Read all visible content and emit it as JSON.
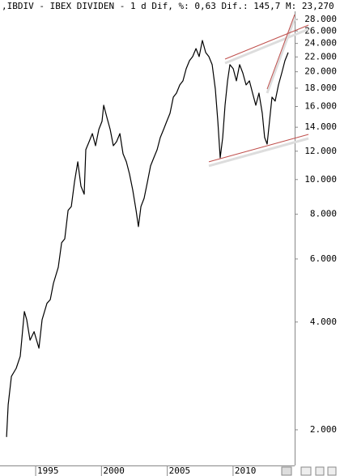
{
  "chart_data": {
    "type": "line",
    "title": ",IBDIV - IBEX DIVIDEN -  1 d Dif, %: 0,63 Dif.: 145,7 M: 23,270",
    "log_scale": true,
    "color": "#000000",
    "x": [
      1992.79,
      1992.91,
      1993.16,
      1993.52,
      1993.83,
      1994.14,
      1994.32,
      1994.57,
      1994.88,
      1995.25,
      1995.49,
      1995.86,
      1996.11,
      1996.35,
      1996.72,
      1996.97,
      1997.21,
      1997.46,
      1997.71,
      1997.95,
      1998.2,
      1998.44,
      1998.69,
      1998.81,
      1999.06,
      1999.31,
      1999.55,
      1999.8,
      2000.04,
      2000.17,
      2000.41,
      2000.66,
      2000.9,
      2001.15,
      2001.4,
      2001.64,
      2001.89,
      2002.13,
      2002.38,
      2002.63,
      2002.81,
      2003.0,
      2003.24,
      2003.49,
      2003.73,
      2003.98,
      2004.23,
      2004.47,
      2004.72,
      2004.96,
      2005.21,
      2005.46,
      2005.7,
      2005.95,
      2006.19,
      2006.44,
      2006.69,
      2006.93,
      2007.18,
      2007.42,
      2007.67,
      2007.92,
      2008.16,
      2008.41,
      2008.65,
      2008.84,
      2009.02,
      2009.21,
      2009.39,
      2009.58,
      2009.76,
      2010.01,
      2010.25,
      2010.5,
      2010.74,
      2010.99,
      2011.24,
      2011.48,
      2011.73,
      2011.97,
      2012.22,
      2012.4,
      2012.59,
      2012.77,
      2012.96,
      2013.2,
      2013.45,
      2013.7,
      2013.94,
      2014.19
    ],
    "values": [
      1910,
      2350,
      2820,
      2970,
      3210,
      4280,
      4060,
      3560,
      3760,
      3380,
      4060,
      4510,
      4620,
      5130,
      5690,
      6660,
      6830,
      8200,
      8410,
      9840,
      11210,
      9580,
      9100,
      12120,
      12760,
      13440,
      12430,
      13800,
      14540,
      16130,
      14920,
      13800,
      12430,
      12760,
      13440,
      11800,
      11210,
      10360,
      9340,
      8200,
      7390,
      8410,
      8860,
      9840,
      10920,
      11500,
      12120,
      13100,
      13800,
      14540,
      15310,
      16990,
      17440,
      18380,
      18860,
      20390,
      21480,
      22050,
      23220,
      22050,
      24460,
      22630,
      22050,
      20930,
      17900,
      14540,
      11500,
      13100,
      16130,
      18860,
      20930,
      20390,
      18860,
      20930,
      19860,
      18380,
      18860,
      17440,
      16130,
      17440,
      15310,
      13100,
      12560,
      14540,
      16990,
      16560,
      18380,
      19860,
      21480,
      22630
    ],
    "trendlines": [
      {
        "color": "#c0504d",
        "x": [
          2008.16,
          2015.73
        ],
        "values": [
          11210,
          13370
        ]
      },
      {
        "color": "#c0504d",
        "x": [
          2009.39,
          2015.73
        ],
        "values": [
          21700,
          27000
        ]
      },
      {
        "color": "#c0504d",
        "x": [
          2012.59,
          2014.68
        ],
        "values": [
          17900,
          28900
        ]
      }
    ],
    "xlim": [
      1992.29,
      2014.68
    ],
    "xticks": [
      1995,
      2000,
      2005,
      2010
    ],
    "ylim": [
      1590,
      29500
    ],
    "yticks": [
      {
        "value": 2000,
        "label": "2.000"
      },
      {
        "value": 4000,
        "label": "4.000"
      },
      {
        "value": 6000,
        "label": "6.000"
      },
      {
        "value": 8000,
        "label": "8.000"
      },
      {
        "value": 10000,
        "label": "10.000"
      },
      {
        "value": 12000,
        "label": "12.000"
      },
      {
        "value": 14000,
        "label": "14.000"
      },
      {
        "value": 16000,
        "label": "16.000"
      },
      {
        "value": 18000,
        "label": "18.000"
      },
      {
        "value": 20000,
        "label": "20.000"
      },
      {
        "value": 22000,
        "label": "22.000"
      },
      {
        "value": 24000,
        "label": "24.000"
      },
      {
        "value": 26000,
        "label": "26.000"
      },
      {
        "value": 28000,
        "label": "28.000"
      }
    ]
  }
}
